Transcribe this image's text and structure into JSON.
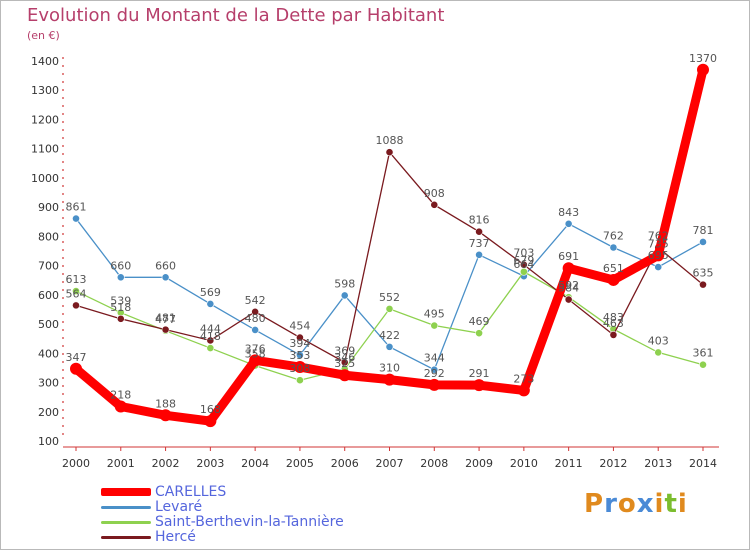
{
  "page": {
    "title": "Evolution du Montant de la Dette par Habitant",
    "unit": "(en €)",
    "logo": {
      "text": "Proxiti",
      "letters": [
        "P",
        "r",
        "o",
        "x",
        "i",
        "t",
        "i"
      ],
      "colors": [
        "#e08a1e",
        "#4a8ad6",
        "#e08a1e",
        "#4a8ad6",
        "#e08a1e",
        "#7bbd2e",
        "#e08a1e"
      ]
    }
  },
  "chart_data": {
    "type": "line",
    "title": "Evolution du Montant de la Dette par Habitant",
    "ylabel": "(en €)",
    "xlabel": "",
    "x": [
      "2000",
      "2001",
      "2002",
      "2003",
      "2004",
      "2005",
      "2006",
      "2007",
      "2008",
      "2009",
      "2010",
      "2011",
      "2012",
      "2013",
      "2014"
    ],
    "ylim": [
      100,
      1400
    ],
    "yticks": [
      100,
      200,
      300,
      400,
      500,
      600,
      700,
      800,
      900,
      1000,
      1100,
      1200,
      1300,
      1400
    ],
    "grid": false,
    "legend_position": "bottom-left",
    "series": [
      {
        "name": "CARELLES",
        "color": "#ff0000",
        "values": [
          347,
          218,
          188,
          168,
          376,
          353,
          325,
          310,
          292,
          291,
          273,
          691,
          651,
          735,
          1370
        ],
        "labels": [
          "347",
          "218",
          "188",
          "168",
          "376",
          "353",
          "325",
          "310",
          "292",
          "291",
          "273",
          "691",
          "651",
          "735",
          "1370"
        ]
      },
      {
        "name": "Levaré",
        "color": "#4a90c8",
        "values": [
          861,
          660,
          660,
          569,
          480,
          394,
          598,
          422,
          344,
          737,
          664,
          843,
          762,
          695,
          781
        ],
        "labels": [
          "861",
          "660",
          "660",
          "569",
          "480",
          "394",
          "598",
          "422",
          "344",
          "737",
          "664",
          "843",
          "762",
          "695",
          "781"
        ]
      },
      {
        "name": "Saint-Berthevin-la-Tannière",
        "color": "#8ed14f",
        "values": [
          613,
          539,
          477,
          418,
          358,
          308,
          346,
          552,
          495,
          469,
          679,
          592,
          483,
          403,
          361
        ],
        "labels": [
          "613",
          "539",
          "477",
          "418",
          "358",
          "308",
          "346",
          "552",
          "495",
          "469",
          "679",
          "592",
          "483",
          "403",
          "361"
        ]
      },
      {
        "name": "Hercé",
        "color": "#7a1a1f",
        "values": [
          564,
          518,
          481,
          444,
          542,
          454,
          369,
          1088,
          908,
          816,
          703,
          584,
          463,
          762,
          635
        ],
        "labels": [
          "564",
          "518",
          "481",
          "444",
          "542",
          "454",
          "369",
          "1088",
          "908",
          "816",
          "703",
          "584",
          "463",
          "762",
          "635"
        ]
      }
    ]
  }
}
